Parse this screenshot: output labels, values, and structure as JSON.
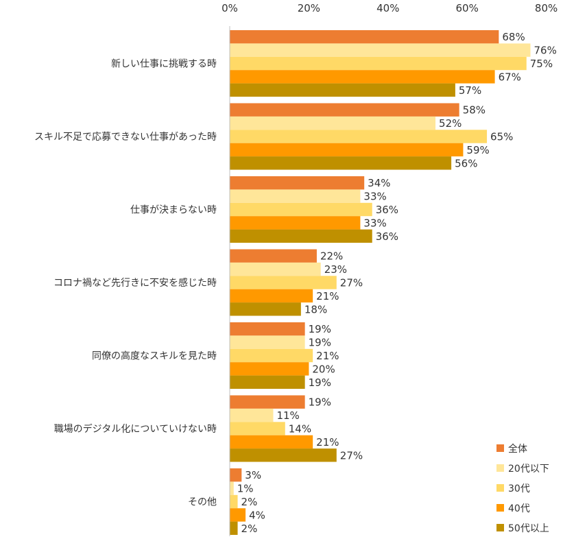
{
  "chart_data": {
    "type": "bar",
    "orientation": "horizontal",
    "categories": [
      "新しい仕事に挑戦する時",
      "スキル不足で応募できない仕事があった時",
      "仕事が決まらない時",
      "コロナ禍など先行きに不安を感じた時",
      "同僚の高度なスキルを見た時",
      "職場のデジタル化についていけない時",
      "その他"
    ],
    "series": [
      {
        "name": "全体",
        "color": "#ED7D31",
        "values": [
          68,
          58,
          34,
          22,
          19,
          19,
          3
        ]
      },
      {
        "name": "20代以下",
        "color": "#FFE699",
        "values": [
          76,
          52,
          33,
          23,
          19,
          11,
          1
        ]
      },
      {
        "name": "30代",
        "color": "#FFD966",
        "values": [
          75,
          65,
          36,
          27,
          21,
          14,
          2
        ]
      },
      {
        "name": "40代",
        "color": "#FF9900",
        "values": [
          67,
          59,
          33,
          21,
          20,
          21,
          4
        ]
      },
      {
        "name": "50代以上",
        "color": "#BF9000",
        "values": [
          57,
          56,
          36,
          18,
          19,
          27,
          2
        ]
      }
    ],
    "value_suffix": "%",
    "xlim": [
      0,
      80
    ],
    "ticks": [
      "0%",
      "20%",
      "40%",
      "60%",
      "80%"
    ],
    "axis_position": "top",
    "grid": false,
    "legend_position": "bottom-right",
    "title": "",
    "xlabel": "",
    "ylabel": ""
  }
}
